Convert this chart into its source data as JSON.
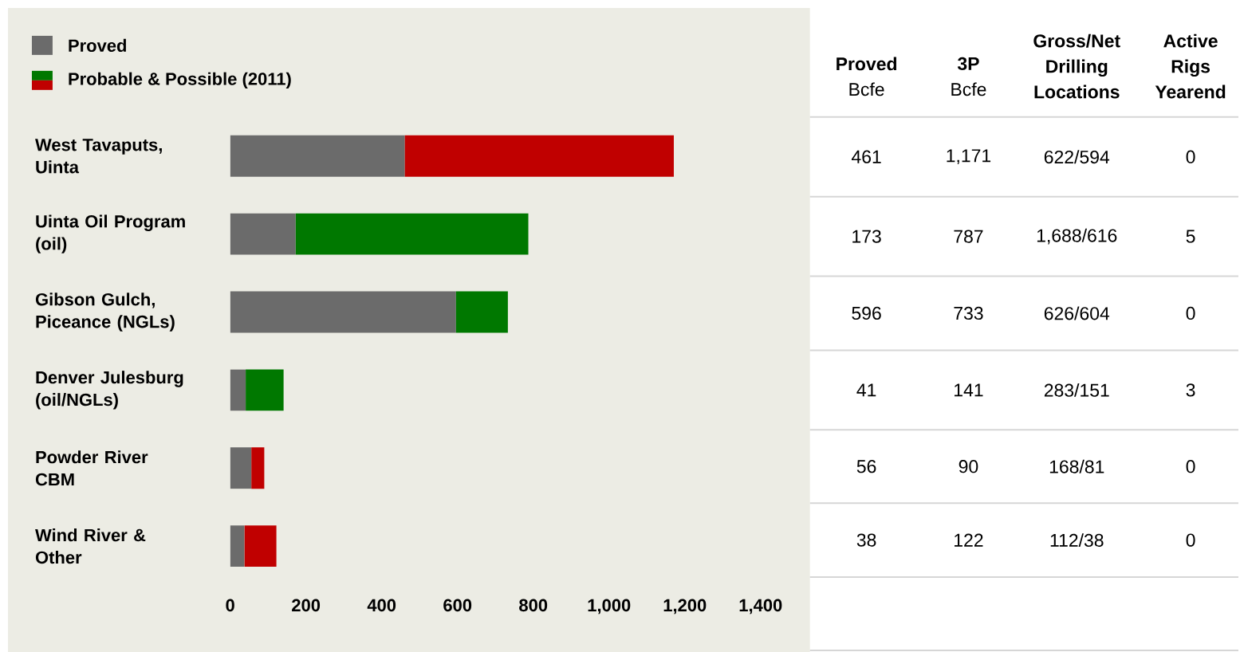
{
  "chart_data": {
    "type": "bar",
    "orientation": "horizontal",
    "stacked": true,
    "legend": "top left",
    "categories": [
      "West Tavaputs, Uinta",
      "Uinta Oil Program (oil)",
      "Gibson Gulch, Piceance (NGLs)",
      "Denver Julesburg (oil/NGLs)",
      "Powder River CBM",
      "Wind River & Other"
    ],
    "series": [
      {
        "name": "Proved",
        "color": "#6b6b6b",
        "values": [
          461,
          173,
          596,
          41,
          56,
          38
        ],
        "value_labels": [
          "461",
          "173",
          "596",
          "41",
          "56",
          "38"
        ]
      },
      {
        "name": "Probable & Possible (2011)",
        "colors": [
          "#c00000",
          "#007800",
          "#007800",
          "#007800",
          "#c00000",
          "#c00000"
        ],
        "values": [
          710,
          614,
          137,
          100,
          34,
          84
        ]
      }
    ],
    "xlim": [
      0,
      1400
    ],
    "xticks": [
      0,
      200,
      400,
      600,
      800,
      {
        "value": 1000,
        "label": "1,000"
      },
      {
        "value": 1200,
        "label": "1,200"
      },
      {
        "value": 1400,
        "label": "1,400"
      }
    ],
    "annotations": [
      "Proved",
      "Bcfe",
      "3P",
      "Bcfe",
      "Gross/Net Drilling Locations",
      "Active Rigs Yearend",
      "1,171",
      "622/594",
      "0",
      "787",
      "1,688/616",
      "5",
      "733",
      "626/604",
      "0",
      "141",
      "283/151",
      "3",
      "90",
      "168/81",
      "0",
      "122",
      "112/38",
      "0"
    ]
  }
}
